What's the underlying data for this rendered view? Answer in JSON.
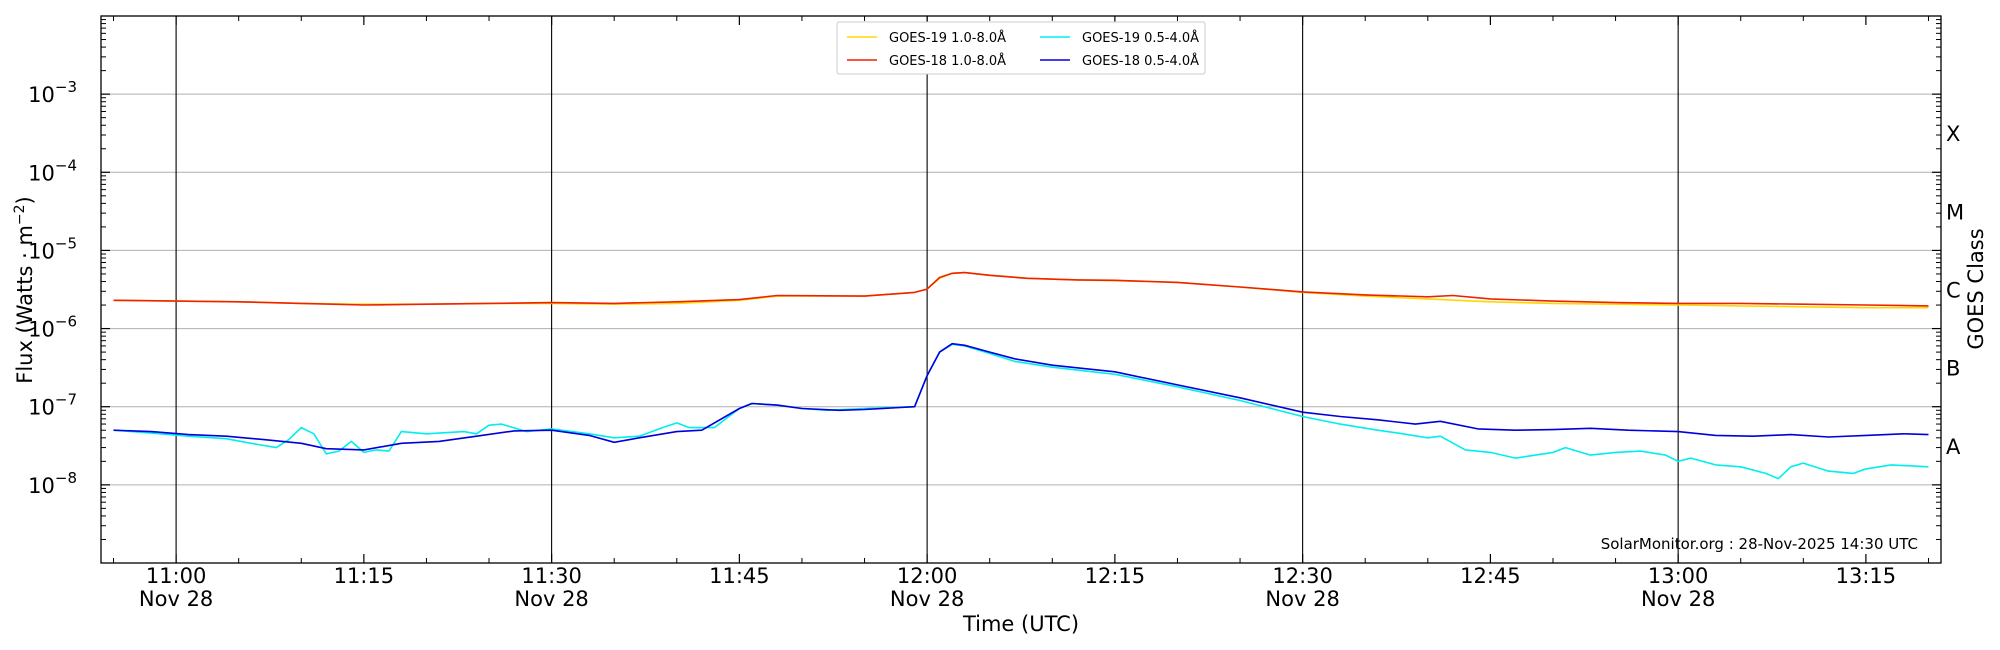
{
  "chart_data": {
    "type": "line",
    "xlabel": "Time (UTC)",
    "ylabel": "Flux (Watts · m",
    "ylabel_sup": "−2",
    "ylabel_close": ")",
    "right_label": "GOES Class",
    "y_scale": "log",
    "ylim": [
      1e-09,
      0.01
    ],
    "xlim": [
      "2025-11-28T10:54",
      "2025-11-28T13:21"
    ],
    "grid": "horizontal",
    "legend_position": "top-center",
    "credit": "SolarMonitor.org : 28-Nov-2025 14:30 UTC",
    "y_ticks": [
      {
        "value": 1e-08,
        "base": "10",
        "exp": "−8"
      },
      {
        "value": 1e-07,
        "base": "10",
        "exp": "−7"
      },
      {
        "value": 1e-06,
        "base": "10",
        "exp": "−6"
      },
      {
        "value": 1e-05,
        "base": "10",
        "exp": "−5"
      },
      {
        "value": 0.0001,
        "base": "10",
        "exp": "−4"
      },
      {
        "value": 0.001,
        "base": "10",
        "exp": "−3"
      }
    ],
    "x_ticks": [
      {
        "time": "11:00",
        "line1": "11:00",
        "line2": "Nov 28",
        "major": true
      },
      {
        "time": "11:15",
        "line1": "11:15",
        "line2": "",
        "major": false
      },
      {
        "time": "11:30",
        "line1": "11:30",
        "line2": "Nov 28",
        "major": true
      },
      {
        "time": "11:45",
        "line1": "11:45",
        "line2": "",
        "major": false
      },
      {
        "time": "12:00",
        "line1": "12:00",
        "line2": "Nov 28",
        "major": true
      },
      {
        "time": "12:15",
        "line1": "12:15",
        "line2": "",
        "major": false
      },
      {
        "time": "12:30",
        "line1": "12:30",
        "line2": "Nov 28",
        "major": true
      },
      {
        "time": "12:45",
        "line1": "12:45",
        "line2": "",
        "major": false
      },
      {
        "time": "13:00",
        "line1": "13:00",
        "line2": "Nov 28",
        "major": true
      },
      {
        "time": "13:15",
        "line1": "13:15",
        "line2": "",
        "major": false
      }
    ],
    "goes_classes": [
      {
        "label": "A",
        "value": 3.16e-08
      },
      {
        "label": "B",
        "value": 3.16e-07
      },
      {
        "label": "C",
        "value": 3.16e-06
      },
      {
        "label": "M",
        "value": 3.16e-05
      },
      {
        "label": "X",
        "value": 0.000316
      }
    ],
    "series": [
      {
        "name": "GOES-19 1.0-8.0Å",
        "color": "#ffd700",
        "points": [
          [
            "10:55",
            2.3e-06
          ],
          [
            "11:00",
            2.25e-06
          ],
          [
            "11:05",
            2.2e-06
          ],
          [
            "11:10",
            2.1e-06
          ],
          [
            "11:15",
            2.05e-06
          ],
          [
            "11:20",
            2.05e-06
          ],
          [
            "11:25",
            2.1e-06
          ],
          [
            "11:30",
            2.1e-06
          ],
          [
            "11:35",
            2.05e-06
          ],
          [
            "11:40",
            2.1e-06
          ],
          [
            "11:45",
            2.3e-06
          ],
          [
            "11:48",
            2.6e-06
          ],
          [
            "11:55",
            2.6e-06
          ],
          [
            "11:59",
            2.9e-06
          ],
          [
            "12:00",
            3.2e-06
          ],
          [
            "12:01",
            4.4e-06
          ],
          [
            "12:02",
            5.1e-06
          ],
          [
            "12:03",
            5.2e-06
          ],
          [
            "12:05",
            4.8e-06
          ],
          [
            "12:08",
            4.4e-06
          ],
          [
            "12:12",
            4.2e-06
          ],
          [
            "12:15",
            4.1e-06
          ],
          [
            "12:20",
            3.9e-06
          ],
          [
            "12:25",
            3.4e-06
          ],
          [
            "12:30",
            2.9e-06
          ],
          [
            "12:35",
            2.6e-06
          ],
          [
            "12:40",
            2.4e-06
          ],
          [
            "12:45",
            2.2e-06
          ],
          [
            "12:50",
            2.1e-06
          ],
          [
            "12:55",
            2.05e-06
          ],
          [
            "13:00",
            2e-06
          ],
          [
            "13:05",
            1.95e-06
          ],
          [
            "13:10",
            1.9e-06
          ],
          [
            "13:15",
            1.85e-06
          ],
          [
            "13:20",
            1.85e-06
          ]
        ]
      },
      {
        "name": "GOES-18 1.0-8.0Å",
        "color": "#ee2200",
        "points": [
          [
            "10:55",
            2.3e-06
          ],
          [
            "11:00",
            2.25e-06
          ],
          [
            "11:05",
            2.2e-06
          ],
          [
            "11:10",
            2.1e-06
          ],
          [
            "11:15",
            2e-06
          ],
          [
            "11:20",
            2.05e-06
          ],
          [
            "11:25",
            2.1e-06
          ],
          [
            "11:30",
            2.15e-06
          ],
          [
            "11:35",
            2.1e-06
          ],
          [
            "11:40",
            2.2e-06
          ],
          [
            "11:45",
            2.35e-06
          ],
          [
            "11:48",
            2.65e-06
          ],
          [
            "11:55",
            2.6e-06
          ],
          [
            "11:59",
            2.9e-06
          ],
          [
            "12:00",
            3.2e-06
          ],
          [
            "12:01",
            4.5e-06
          ],
          [
            "12:02",
            5.1e-06
          ],
          [
            "12:03",
            5.2e-06
          ],
          [
            "12:05",
            4.8e-06
          ],
          [
            "12:08",
            4.4e-06
          ],
          [
            "12:12",
            4.2e-06
          ],
          [
            "12:15",
            4.15e-06
          ],
          [
            "12:20",
            3.9e-06
          ],
          [
            "12:25",
            3.4e-06
          ],
          [
            "12:30",
            2.95e-06
          ],
          [
            "12:35",
            2.7e-06
          ],
          [
            "12:40",
            2.55e-06
          ],
          [
            "12:42",
            2.65e-06
          ],
          [
            "12:45",
            2.4e-06
          ],
          [
            "12:50",
            2.25e-06
          ],
          [
            "12:55",
            2.15e-06
          ],
          [
            "13:00",
            2.1e-06
          ],
          [
            "13:05",
            2.1e-06
          ],
          [
            "13:10",
            2.05e-06
          ],
          [
            "13:15",
            2e-06
          ],
          [
            "13:20",
            1.95e-06
          ]
        ]
      },
      {
        "name": "GOES-19 0.5-4.0Å",
        "color": "#00eeee",
        "points": [
          [
            "10:55",
            5e-08
          ],
          [
            "10:58",
            4.6e-08
          ],
          [
            "11:01",
            4.2e-08
          ],
          [
            "11:04",
            3.9e-08
          ],
          [
            "11:06",
            3.4e-08
          ],
          [
            "11:08",
            3e-08
          ],
          [
            "11:09",
            3.8e-08
          ],
          [
            "11:10",
            5.4e-08
          ],
          [
            "11:11",
            4.5e-08
          ],
          [
            "11:12",
            2.5e-08
          ],
          [
            "11:13",
            2.7e-08
          ],
          [
            "11:14",
            3.6e-08
          ],
          [
            "11:15",
            2.6e-08
          ],
          [
            "11:16",
            2.8e-08
          ],
          [
            "11:17",
            2.7e-08
          ],
          [
            "11:18",
            4.8e-08
          ],
          [
            "11:20",
            4.5e-08
          ],
          [
            "11:23",
            4.8e-08
          ],
          [
            "11:24",
            4.5e-08
          ],
          [
            "11:25",
            5.8e-08
          ],
          [
            "11:26",
            6e-08
          ],
          [
            "11:28",
            4.8e-08
          ],
          [
            "11:30",
            5.2e-08
          ],
          [
            "11:33",
            4.5e-08
          ],
          [
            "11:35",
            4e-08
          ],
          [
            "11:37",
            4.2e-08
          ],
          [
            "11:39",
            5.5e-08
          ],
          [
            "11:40",
            6.2e-08
          ],
          [
            "11:41",
            5.4e-08
          ],
          [
            "11:43",
            5.4e-08
          ],
          [
            "11:45",
            9.5e-08
          ],
          [
            "11:46",
            1.1e-07
          ],
          [
            "11:48",
            1.05e-07
          ],
          [
            "11:50",
            9.5e-08
          ],
          [
            "11:52",
            9e-08
          ],
          [
            "11:55",
            9.5e-08
          ],
          [
            "11:59",
            1e-07
          ],
          [
            "12:00",
            2.5e-07
          ],
          [
            "12:01",
            5e-07
          ],
          [
            "12:02",
            6.3e-07
          ],
          [
            "12:03",
            6e-07
          ],
          [
            "12:05",
            4.8e-07
          ],
          [
            "12:07",
            3.8e-07
          ],
          [
            "12:10",
            3.2e-07
          ],
          [
            "12:15",
            2.6e-07
          ],
          [
            "12:20",
            1.8e-07
          ],
          [
            "12:25",
            1.2e-07
          ],
          [
            "12:30",
            7.5e-08
          ],
          [
            "12:33",
            6e-08
          ],
          [
            "12:36",
            5e-08
          ],
          [
            "12:38",
            4.5e-08
          ],
          [
            "12:40",
            4e-08
          ],
          [
            "12:41",
            4.2e-08
          ],
          [
            "12:43",
            2.8e-08
          ],
          [
            "12:45",
            2.6e-08
          ],
          [
            "12:47",
            2.2e-08
          ],
          [
            "12:50",
            2.6e-08
          ],
          [
            "12:51",
            3e-08
          ],
          [
            "12:53",
            2.4e-08
          ],
          [
            "12:55",
            2.6e-08
          ],
          [
            "12:57",
            2.7e-08
          ],
          [
            "12:59",
            2.4e-08
          ],
          [
            "13:00",
            2e-08
          ],
          [
            "13:01",
            2.2e-08
          ],
          [
            "13:03",
            1.8e-08
          ],
          [
            "13:05",
            1.7e-08
          ],
          [
            "13:07",
            1.4e-08
          ],
          [
            "13:08",
            1.2e-08
          ],
          [
            "13:09",
            1.7e-08
          ],
          [
            "13:10",
            1.9e-08
          ],
          [
            "13:12",
            1.5e-08
          ],
          [
            "13:14",
            1.4e-08
          ],
          [
            "13:15",
            1.6e-08
          ],
          [
            "13:17",
            1.8e-08
          ],
          [
            "13:20",
            1.7e-08
          ]
        ]
      },
      {
        "name": "GOES-18 0.5-4.0Å",
        "color": "#0000dd",
        "points": [
          [
            "10:55",
            5e-08
          ],
          [
            "10:58",
            4.8e-08
          ],
          [
            "11:01",
            4.4e-08
          ],
          [
            "11:04",
            4.2e-08
          ],
          [
            "11:07",
            3.8e-08
          ],
          [
            "11:10",
            3.4e-08
          ],
          [
            "11:12",
            2.9e-08
          ],
          [
            "11:15",
            2.8e-08
          ],
          [
            "11:18",
            3.4e-08
          ],
          [
            "11:21",
            3.6e-08
          ],
          [
            "11:24",
            4.2e-08
          ],
          [
            "11:27",
            4.9e-08
          ],
          [
            "11:30",
            5e-08
          ],
          [
            "11:33",
            4.3e-08
          ],
          [
            "11:35",
            3.5e-08
          ],
          [
            "11:37",
            4e-08
          ],
          [
            "11:40",
            4.8e-08
          ],
          [
            "11:42",
            5e-08
          ],
          [
            "11:45",
            9.5e-08
          ],
          [
            "11:46",
            1.1e-07
          ],
          [
            "11:48",
            1.05e-07
          ],
          [
            "11:50",
            9.5e-08
          ],
          [
            "11:53",
            9e-08
          ],
          [
            "11:55",
            9.2e-08
          ],
          [
            "11:59",
            1e-07
          ],
          [
            "12:00",
            2.5e-07
          ],
          [
            "12:01",
            5e-07
          ],
          [
            "12:02",
            6.4e-07
          ],
          [
            "12:03",
            6.1e-07
          ],
          [
            "12:05",
            5e-07
          ],
          [
            "12:07",
            4.1e-07
          ],
          [
            "12:10",
            3.4e-07
          ],
          [
            "12:15",
            2.8e-07
          ],
          [
            "12:20",
            1.9e-07
          ],
          [
            "12:25",
            1.3e-07
          ],
          [
            "12:30",
            8.5e-08
          ],
          [
            "12:33",
            7.5e-08
          ],
          [
            "12:36",
            6.8e-08
          ],
          [
            "12:39",
            6e-08
          ],
          [
            "12:41",
            6.5e-08
          ],
          [
            "12:44",
            5.2e-08
          ],
          [
            "12:47",
            5e-08
          ],
          [
            "12:50",
            5.1e-08
          ],
          [
            "12:53",
            5.3e-08
          ],
          [
            "12:56",
            5e-08
          ],
          [
            "13:00",
            4.8e-08
          ],
          [
            "13:03",
            4.3e-08
          ],
          [
            "13:06",
            4.2e-08
          ],
          [
            "13:09",
            4.4e-08
          ],
          [
            "13:12",
            4.1e-08
          ],
          [
            "13:15",
            4.3e-08
          ],
          [
            "13:18",
            4.5e-08
          ],
          [
            "13:20",
            4.4e-08
          ]
        ]
      }
    ]
  }
}
